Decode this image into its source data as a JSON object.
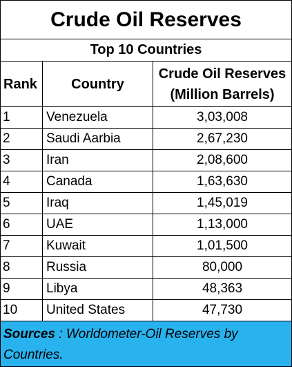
{
  "title": "Crude Oil Reserves",
  "subtitle": "Top 10 Countries",
  "headers": {
    "rank": "Rank",
    "country": "Country",
    "reserves_line1": "Crude Oil Reserves",
    "reserves_line2": "(Million Barrels)"
  },
  "rows": [
    {
      "rank": "1",
      "country": "Venezuela",
      "reserves": "3,03,008"
    },
    {
      "rank": "2",
      "country": "Saudi Aarbia",
      "reserves": "2,67,230"
    },
    {
      "rank": "3",
      "country": "Iran",
      "reserves": "2,08,600"
    },
    {
      "rank": "4",
      "country": "Canada",
      "reserves": "1,63,630"
    },
    {
      "rank": "5",
      "country": "Iraq",
      "reserves": "1,45,019"
    },
    {
      "rank": "6",
      "country": "UAE",
      "reserves": "1,13,000"
    },
    {
      "rank": "7",
      "country": "Kuwait",
      "reserves": "1,01,500"
    },
    {
      "rank": "8",
      "country": "Russia",
      "reserves": "80,000"
    },
    {
      "rank": "9",
      "country": "Libya",
      "reserves": "48,363"
    },
    {
      "rank": "10",
      "country": "United States",
      "reserves": "47,730"
    }
  ],
  "sources": {
    "label": "Sources",
    "text": " : Worldometer-Oil Reserves by Countries."
  },
  "colors": {
    "sources_background": "#29b3ee"
  }
}
